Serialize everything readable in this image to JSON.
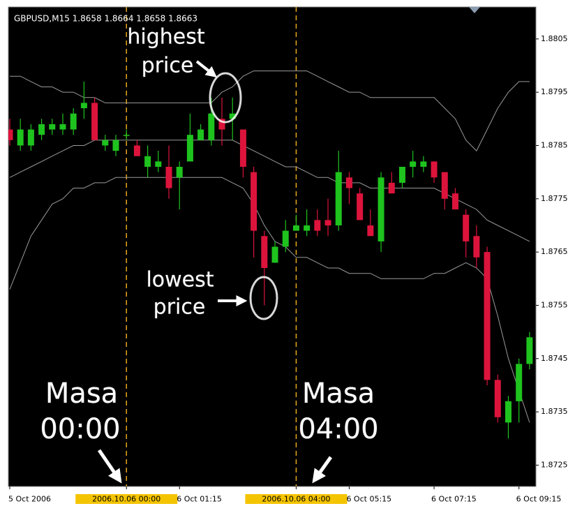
{
  "chart_data": {
    "type": "candlestick",
    "title": "GBPUSD,M15  1.8658 1.8664 1.8658 1.8663",
    "open": [
      1.8788,
      1.8785,
      1.8785,
      1.8787,
      1.8788,
      1.8788,
      1.8788,
      1.8792,
      1.8793,
      1.8785,
      1.8784,
      1.8787,
      1.8785,
      1.8781,
      1.8781,
      1.8781,
      1.8779,
      1.8782,
      1.8786,
      1.8786,
      1.879,
      1.879,
      1.8788,
      1.878,
      1.8768,
      1.8763,
      1.8766,
      1.8769,
      1.8769,
      1.8771,
      1.8771,
      1.877,
      1.8779,
      1.8776,
      1.877,
      1.8767,
      1.8778,
      1.8778,
      1.8781,
      1.8781,
      1.8782,
      1.878,
      1.8776,
      1.8772,
      1.8768,
      1.8765,
      1.8741,
      1.8733,
      1.8737,
      1.8744
    ],
    "high": [
      1.879,
      1.879,
      1.8789,
      1.879,
      1.879,
      1.8791,
      1.8792,
      1.8797,
      1.8794,
      1.8787,
      1.8787,
      1.8788,
      1.8786,
      1.8785,
      1.8784,
      1.8785,
      1.8782,
      1.8791,
      1.8789,
      1.8794,
      1.8794,
      1.8794,
      1.8788,
      1.8781,
      1.8769,
      1.8767,
      1.8771,
      1.8772,
      1.8773,
      1.8773,
      1.8775,
      1.8784,
      1.878,
      1.8777,
      1.8773,
      1.878,
      1.878,
      1.8781,
      1.8784,
      1.8783,
      1.8782,
      1.878,
      1.8777,
      1.8773,
      1.877,
      1.8766,
      1.8742,
      1.8738,
      1.8745,
      1.875
    ],
    "low": [
      1.8785,
      1.8784,
      1.8784,
      1.8786,
      1.8787,
      1.8787,
      1.8787,
      1.879,
      1.8786,
      1.8784,
      1.8783,
      1.8786,
      1.8783,
      1.8779,
      1.878,
      1.8775,
      1.8773,
      1.8782,
      1.8786,
      1.8785,
      1.8785,
      1.8786,
      1.8779,
      1.8764,
      1.8755,
      1.8763,
      1.8765,
      1.8769,
      1.8768,
      1.8768,
      1.8768,
      1.8769,
      1.8774,
      1.8771,
      1.8768,
      1.8765,
      1.8776,
      1.8777,
      1.8779,
      1.878,
      1.8778,
      1.8773,
      1.8773,
      1.8764,
      1.8762,
      1.874,
      1.8733,
      1.873,
      1.8733,
      1.8743
    ],
    "close": [
      1.8786,
      1.8788,
      1.8788,
      1.8789,
      1.8789,
      1.8789,
      1.8791,
      1.8793,
      1.8786,
      1.8786,
      1.8786,
      1.8787,
      1.8783,
      1.8783,
      1.8782,
      1.8777,
      1.8781,
      1.8787,
      1.8788,
      1.8791,
      1.8788,
      1.8791,
      1.8781,
      1.8769,
      1.8762,
      1.8766,
      1.8769,
      1.877,
      1.877,
      1.8769,
      1.877,
      1.878,
      1.8777,
      1.8771,
      1.8768,
      1.8779,
      1.8776,
      1.8781,
      1.8782,
      1.8782,
      1.8779,
      1.8775,
      1.8773,
      1.8767,
      1.8764,
      1.8741,
      1.8734,
      1.8737,
      1.8744,
      1.8749
    ],
    "up_color": "#1ec31e",
    "down_color": "#dc143c",
    "series": [
      {
        "color": "#9a9a9a",
        "values": [
          1.8798,
          1.8798,
          1.8797,
          1.8796,
          1.8796,
          1.8795,
          1.8795,
          1.8794,
          1.8794,
          1.8793,
          1.8793,
          1.8793,
          1.8793,
          1.8793,
          1.8793,
          1.8793,
          1.8793,
          1.8793,
          1.8793,
          1.8793,
          1.8795,
          1.8796,
          1.8798,
          1.8799,
          1.8799,
          1.8799,
          1.8799,
          1.8799,
          1.8799,
          1.8798,
          1.8797,
          1.8796,
          1.8795,
          1.8795,
          1.8794,
          1.8794,
          1.8794,
          1.8794,
          1.8794,
          1.8794,
          1.8794,
          1.8792,
          1.879,
          1.8786,
          1.8784,
          1.8788,
          1.8792,
          1.8795,
          1.8797,
          1.8797
        ]
      },
      {
        "color": "#9a9a9a",
        "values": [
          1.8779,
          1.878,
          1.8781,
          1.8782,
          1.8783,
          1.8784,
          1.8785,
          1.8785,
          1.8786,
          1.8786,
          1.8786,
          1.8786,
          1.8786,
          1.8786,
          1.8786,
          1.8786,
          1.8786,
          1.8786,
          1.8786,
          1.8786,
          1.8786,
          1.8786,
          1.8785,
          1.8784,
          1.8783,
          1.8782,
          1.8781,
          1.8781,
          1.878,
          1.8779,
          1.8779,
          1.8778,
          1.8778,
          1.8778,
          1.8777,
          1.8777,
          1.8777,
          1.8777,
          1.8777,
          1.8777,
          1.8777,
          1.8776,
          1.8775,
          1.8774,
          1.8773,
          1.8771,
          1.877,
          1.8769,
          1.8768,
          1.8767
        ]
      },
      {
        "color": "#9a9a9a",
        "values": [
          1.8758,
          1.8763,
          1.8768,
          1.8771,
          1.8774,
          1.8775,
          1.8777,
          1.8777,
          1.8778,
          1.8778,
          1.8779,
          1.8779,
          1.8779,
          1.8779,
          1.8779,
          1.8779,
          1.8779,
          1.8779,
          1.8779,
          1.8779,
          1.8779,
          1.8778,
          1.8777,
          1.8774,
          1.877,
          1.8767,
          1.8766,
          1.8764,
          1.8764,
          1.8763,
          1.8762,
          1.8762,
          1.8761,
          1.8761,
          1.8761,
          1.876,
          1.876,
          1.876,
          1.876,
          1.876,
          1.8761,
          1.8761,
          1.8762,
          1.8763,
          1.8762,
          1.876,
          1.8753,
          1.8745,
          1.8739,
          1.8733
        ]
      }
    ],
    "xlim": [
      -0.13,
      49.6
    ],
    "xticks": [
      {
        "value": 0,
        "label": "5 Oct 2006"
      },
      {
        "value": 11,
        "label": "2006.10.06 00:00",
        "highlight": true
      },
      {
        "value": 16,
        "label": "6 Oct 01:15"
      },
      {
        "value": 27,
        "label": "2006.10.06 04:00",
        "highlight": true
      },
      {
        "value": 32,
        "label": "6 Oct 05:15"
      },
      {
        "value": 40,
        "label": "6 Oct 07:15"
      },
      {
        "value": 48,
        "label": "6 Oct 09:15"
      }
    ],
    "ylim": [
      1.8721,
      1.8811
    ],
    "yticks": [
      1.8725,
      1.8735,
      1.8745,
      1.8755,
      1.8765,
      1.8775,
      1.8785,
      1.8795,
      1.8805
    ],
    "annotations": [
      "highest",
      "price",
      "lowest",
      "price",
      "Masa",
      "00:00",
      "Masa",
      "04:00"
    ]
  }
}
